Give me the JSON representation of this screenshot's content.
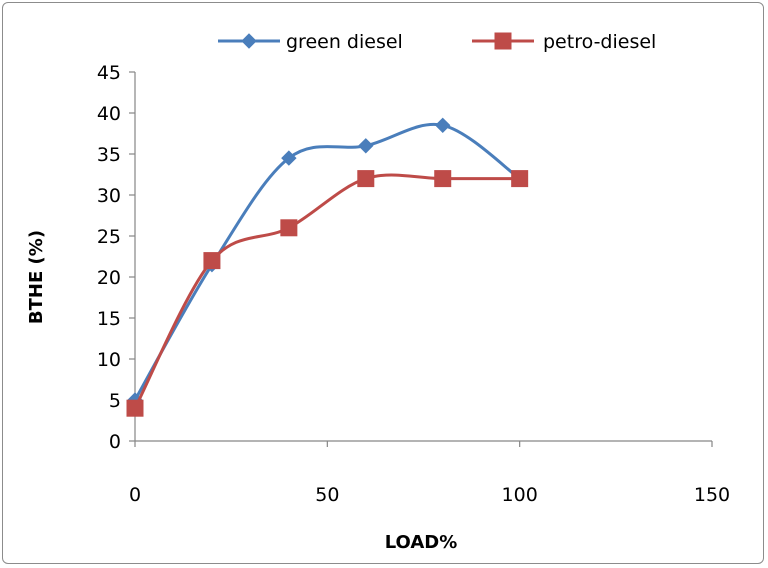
{
  "chart_data": {
    "type": "line",
    "title": "",
    "xlabel": "LOAD%",
    "ylabel": "BTHE  (%)",
    "xlim": [
      0,
      150
    ],
    "ylim": [
      0,
      45
    ],
    "xticks": [
      0,
      50,
      100,
      150
    ],
    "yticks": [
      0,
      5,
      10,
      15,
      20,
      25,
      30,
      35,
      40,
      45
    ],
    "grid": false,
    "smooth": true,
    "legend": "top",
    "series": [
      {
        "name": "green diesel",
        "color": "#4a7ebb",
        "marker": "diamond",
        "x": [
          0,
          20,
          40,
          60,
          80,
          100
        ],
        "y": [
          5,
          21.5,
          34.5,
          36,
          38.5,
          32
        ]
      },
      {
        "name": "petro-diesel",
        "color": "#be4b48",
        "marker": "square",
        "x": [
          0,
          20,
          40,
          60,
          80,
          100
        ],
        "y": [
          4,
          22,
          26,
          32,
          32,
          32
        ]
      }
    ]
  }
}
